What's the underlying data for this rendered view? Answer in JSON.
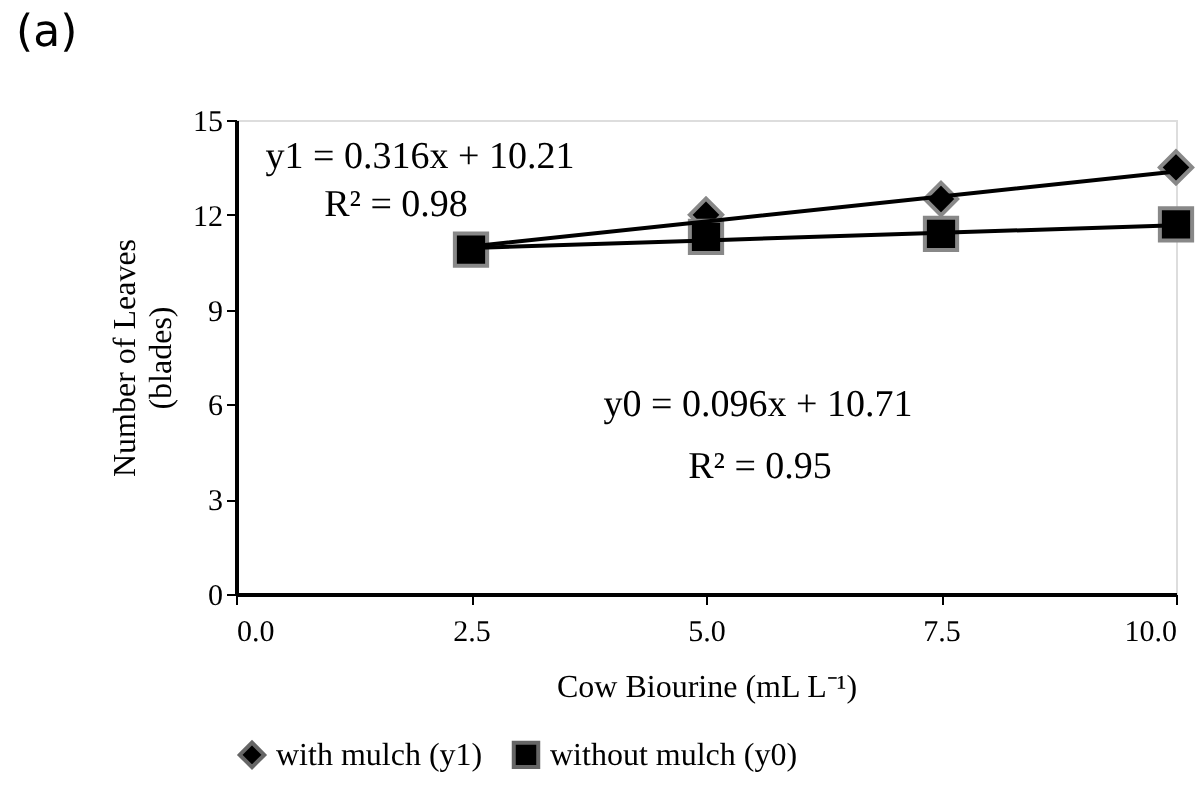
{
  "chart_data": {
    "type": "scatter",
    "title": "(a)",
    "xlabel": "Cow Biourine (mL L⁻¹)",
    "ylabel": "Number of Leaves\n(blades)",
    "x": [
      2.5,
      5,
      7.5,
      10
    ],
    "series": [
      {
        "name": "with mulch (y1)",
        "color": "#000000",
        "marker": "diamond",
        "values": [
          null,
          12.0,
          12.5,
          13.5
        ]
      },
      {
        "name": "without mulch (y0)",
        "color": "#000000",
        "marker": "square",
        "values": [
          10.9,
          11.3,
          11.4,
          11.7
        ]
      },
      {
        "type": "line",
        "color": "#000000",
        "values": [
          11.0,
          11.79,
          12.58,
          13.37
        ]
      },
      {
        "type": "line",
        "color": "#000000",
        "values": [
          10.95,
          11.19,
          11.43,
          11.67
        ]
      }
    ],
    "annotations": [
      "y1 = 0.316x + 10.21",
      "R² = 0.98",
      "y0 = 0.096x + 10.71",
      "R² = 0.95"
    ],
    "xlim": [
      0,
      10
    ],
    "xticks": [
      {
        "value": 0,
        "label": "0.0"
      },
      2.5,
      {
        "value": 5,
        "label": "5.0"
      },
      7.5,
      {
        "value": 10,
        "label": "10.0"
      }
    ],
    "ylim": [
      0,
      15
    ],
    "yticks": [
      0,
      3,
      6,
      9,
      12,
      15
    ],
    "grid": false,
    "legend": "bottom"
  }
}
